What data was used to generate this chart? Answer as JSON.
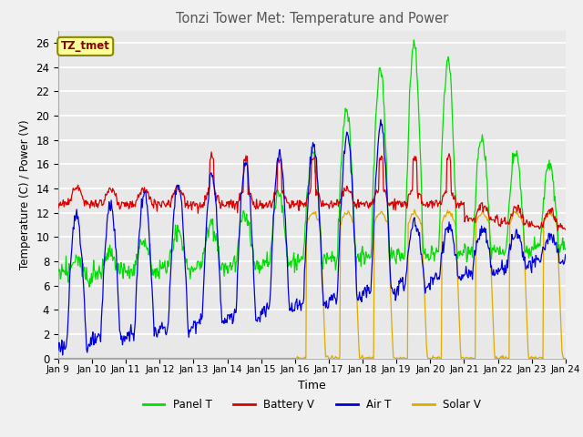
{
  "title": "Tonzi Tower Met: Temperature and Power",
  "xlabel": "Time",
  "ylabel": "Temperature (C) / Power (V)",
  "ylim": [
    0,
    27
  ],
  "yticks": [
    0,
    2,
    4,
    6,
    8,
    10,
    12,
    14,
    16,
    18,
    20,
    22,
    24,
    26
  ],
  "xtick_labels": [
    "Jan 9",
    "Jan 10",
    "Jan 11",
    "Jan 12",
    "Jan 13",
    "Jan 14",
    "Jan 15",
    "Jan 16",
    "Jan 17",
    "Jan 18",
    "Jan 19",
    "Jan 20",
    "Jan 21",
    "Jan 22",
    "Jan 23",
    "Jan 24"
  ],
  "legend_labels": [
    "Panel T",
    "Battery V",
    "Air T",
    "Solar V"
  ],
  "panel_color": "#00dd00",
  "battery_color": "#dd0000",
  "air_color": "#0000dd",
  "solar_color": "#ddaa00",
  "bg_color": "#e8e8e8",
  "grid_color": "#ffffff",
  "annotation_text": "TZ_tmet",
  "annotation_bg": "#ffff99",
  "annotation_fg": "#880000",
  "title_color": "#555555"
}
